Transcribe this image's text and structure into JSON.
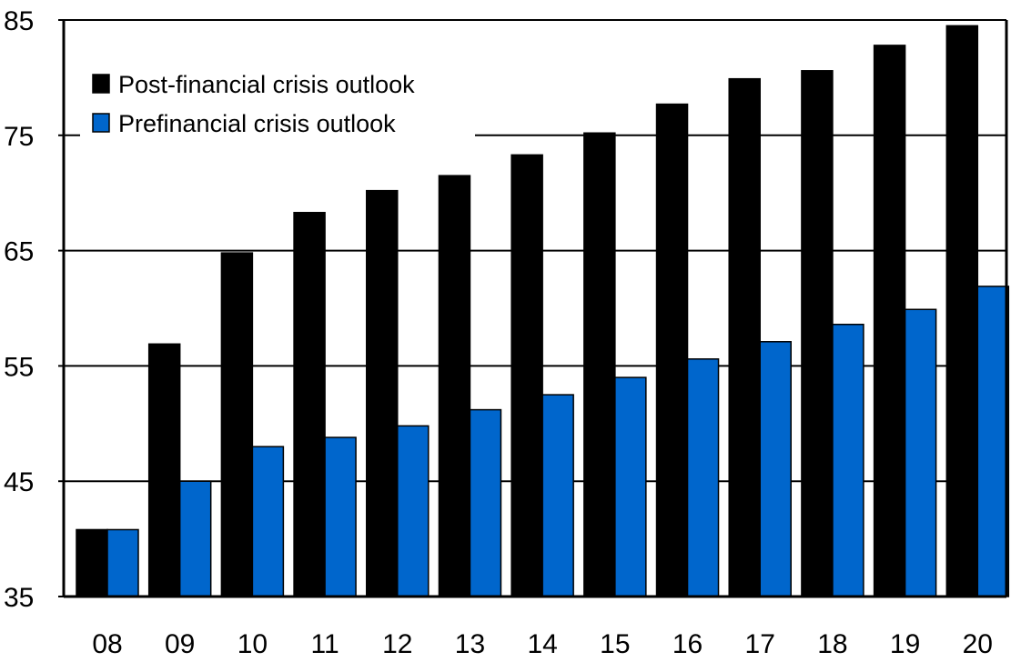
{
  "chart_data": {
    "type": "bar",
    "title": "",
    "xlabel": "",
    "ylabel": "",
    "categories": [
      "08",
      "09",
      "10",
      "11",
      "12",
      "13",
      "14",
      "15",
      "16",
      "17",
      "18",
      "19",
      "20"
    ],
    "series": [
      {
        "name": "Post-financial crisis outlook",
        "color": "#000000",
        "values": [
          40.8,
          56.9,
          64.8,
          68.3,
          70.2,
          71.5,
          73.3,
          75.2,
          77.7,
          79.9,
          80.6,
          82.8,
          84.5
        ]
      },
      {
        "name": "Prefinancial crisis outlook",
        "color": "#0066CC",
        "values": [
          40.8,
          45.0,
          48.0,
          48.8,
          49.8,
          51.2,
          52.5,
          54.0,
          55.6,
          57.1,
          58.6,
          59.9,
          61.9
        ]
      }
    ],
    "ylim": [
      35,
      85
    ],
    "yticks": [
      35,
      45,
      55,
      65,
      75,
      85
    ],
    "ytick_labels": [
      "35",
      "45",
      "55",
      "65",
      "75",
      "85"
    ],
    "grid": "horizontal",
    "legend_position": "top-left"
  }
}
